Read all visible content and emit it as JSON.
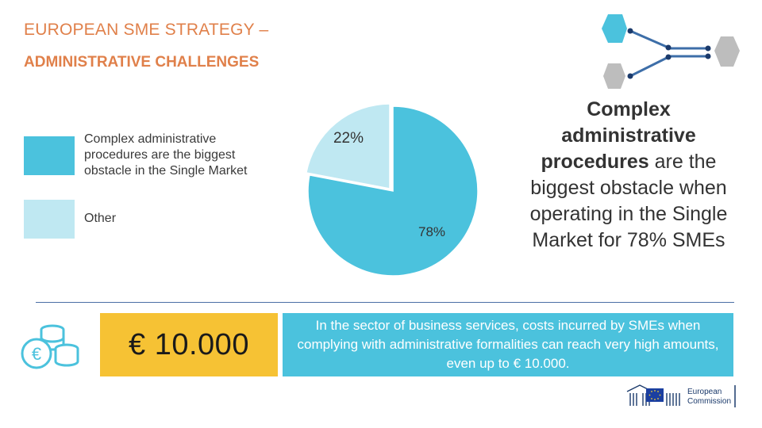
{
  "header": {
    "title_line1": "EUROPEAN SME STRATEGY –",
    "title_line2": "ADMINISTRATIVE CHALLENGES"
  },
  "chart_data": {
    "type": "pie",
    "categories": [
      "Complex administrative procedures are the biggest obstacle in the Single Market",
      "Other"
    ],
    "values": [
      78,
      22
    ],
    "labels": [
      "78%",
      "22%"
    ],
    "colors": [
      "#4bc2dd",
      "#bfe8f2"
    ],
    "legend_position": "left"
  },
  "legend": {
    "items": [
      {
        "label": "Complex administrative procedures are the biggest obstacle in the Single Market",
        "color": "#4bc2dd"
      },
      {
        "label": "Other",
        "color": "#bfe8f2"
      }
    ]
  },
  "highlight": {
    "bold": "Complex administrative procedures",
    "rest": " are the biggest obstacle when operating in the Single Market for 78% SMEs"
  },
  "cost": {
    "amount": "€ 10.000",
    "description": "In the sector of business services, costs incurred by SMEs when complying with administrative formalities can reach very high amounts, even up to € 10.000.",
    "icon": "euro-coins-icon"
  },
  "footer": {
    "logo_line1": "European",
    "logo_line2": "Commission",
    "logo_icon": "eu-flag-icon"
  },
  "colors": {
    "title": "#e0804a",
    "accent_blue": "#4bc2dd",
    "light_blue": "#bfe8f2",
    "amount_yellow": "#f6c234",
    "hexagon_grey": "#bdbdbd"
  }
}
